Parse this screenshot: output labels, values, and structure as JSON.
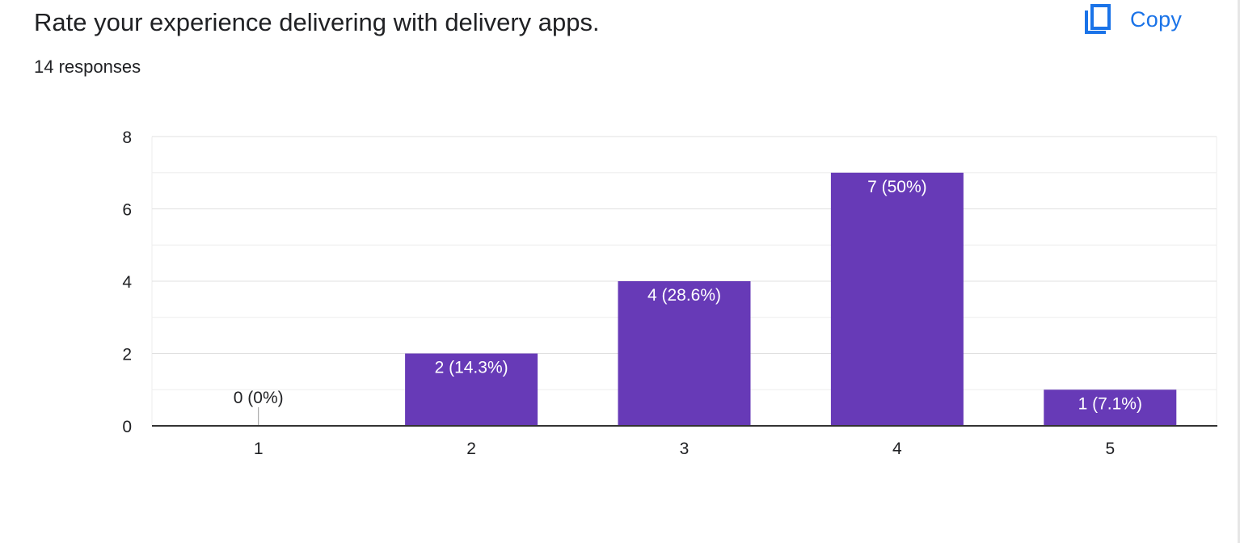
{
  "header": {
    "title": "Rate your experience delivering with delivery apps.",
    "responses": "14 responses",
    "copy_label": "Copy",
    "copy_icon": "copy-icon"
  },
  "colors": {
    "bar": "#673ab7",
    "accent": "#1a73e8",
    "text": "#202124",
    "grid": "#e0e0e0",
    "minor_grid": "#eeeeee",
    "axis": "#333333"
  },
  "chart_data": {
    "type": "bar",
    "title": "Rate your experience delivering with delivery apps.",
    "xlabel": "",
    "ylabel": "",
    "categories": [
      "1",
      "2",
      "3",
      "4",
      "5"
    ],
    "values": [
      0,
      2,
      4,
      7,
      1
    ],
    "labels": [
      "0 (0%)",
      "2 (14.3%)",
      "4 (28.6%)",
      "7 (50%)",
      "1 (7.1%)"
    ],
    "ylim": [
      0,
      8
    ],
    "yticks": [
      "0",
      "2",
      "4",
      "6",
      "8"
    ],
    "grid": true
  }
}
